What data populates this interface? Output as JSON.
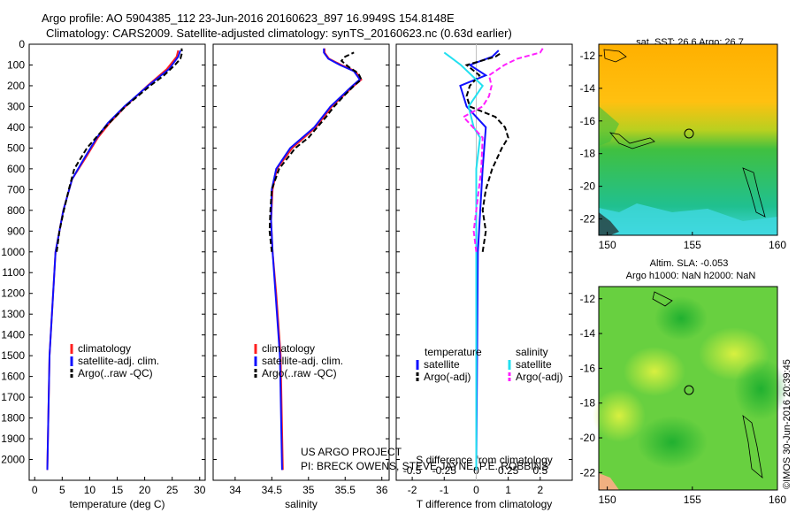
{
  "header": {
    "line1": "Argo profile: AO 5904385_112 23-Jun-2016 20160623_897 16.9949S 154.8148E",
    "line2": "Climatology: CARS2009. Satellite-adjusted climatology: synTS_20160623.nc (0.63d earlier)"
  },
  "colors": {
    "clim": "#ff2020",
    "sat": "#1010ff",
    "argo": "#000000",
    "sal_sat": "#22e0f0",
    "sal_argo": "#ff20ff"
  },
  "chart_data": [
    {
      "type": "line",
      "panel": "temperature",
      "xlabel": "temperature (deg C)",
      "xlim": [
        -1,
        31
      ],
      "xticks": [
        "0",
        "5",
        "10",
        "15",
        "20",
        "25",
        "30"
      ],
      "ylim": [
        2100,
        0
      ],
      "yticks": [
        "0",
        "100",
        "200",
        "300",
        "400",
        "500",
        "600",
        "700",
        "800",
        "900",
        "1000",
        "1100",
        "1200",
        "1300",
        "1400",
        "1500",
        "1600",
        "1700",
        "1800",
        "1900",
        "2000"
      ],
      "legend": [
        "climatology",
        "satellite-adj. clim.",
        "Argo(..raw -QC)"
      ],
      "series": [
        {
          "name": "climatology",
          "y": [
            2050,
            1500,
            1000,
            800,
            650,
            550,
            450,
            380,
            300,
            200,
            120,
            60,
            30
          ],
          "x": [
            2.3,
            2.7,
            3.8,
            5.2,
            6.8,
            9.2,
            11.5,
            13.6,
            16.5,
            20.5,
            24.0,
            25.8,
            26.1
          ]
        },
        {
          "name": "satellite-adj. clim.",
          "y": [
            2050,
            1500,
            1000,
            800,
            650,
            550,
            450,
            380,
            300,
            200,
            120,
            60,
            30
          ],
          "x": [
            2.3,
            2.7,
            3.8,
            5.2,
            6.8,
            9.0,
            11.3,
            13.3,
            16.3,
            20.6,
            24.4,
            26.1,
            26.5
          ]
        },
        {
          "name": "Argo(..raw -QC)",
          "y": [
            1000,
            900,
            800,
            700,
            600,
            500,
            400,
            300,
            200,
            150,
            100,
            70,
            40,
            20
          ],
          "x": [
            4.0,
            4.5,
            5.3,
            6.2,
            7.2,
            9.5,
            12.8,
            16.5,
            21.0,
            23.5,
            25.5,
            26.5,
            26.8,
            26.7
          ]
        }
      ]
    },
    {
      "type": "line",
      "panel": "salinity",
      "xlabel": "salinity",
      "xlim": [
        33.7,
        36.1
      ],
      "xticks": [
        "34",
        "34.5",
        "35",
        "35.5",
        "36"
      ],
      "ylim": [
        2100,
        0
      ],
      "legend": [
        "climatology",
        "satellite-adj. clim.",
        "Argo(..raw -QC)"
      ],
      "series": [
        {
          "name": "climatology",
          "y": [
            2050,
            1500,
            1200,
            1000,
            850,
            700,
            600,
            500,
            400,
            300,
            250,
            200,
            170,
            130,
            100,
            70,
            40,
            20
          ],
          "x": [
            34.65,
            34.62,
            34.56,
            34.51,
            34.49,
            34.51,
            34.57,
            34.78,
            35.1,
            35.32,
            35.47,
            35.62,
            35.72,
            35.64,
            35.45,
            35.28,
            35.22,
            35.22
          ]
        },
        {
          "name": "satellite-adj. clim.",
          "y": [
            2050,
            1500,
            1200,
            1000,
            850,
            700,
            600,
            500,
            400,
            300,
            250,
            200,
            170,
            130,
            100,
            70,
            40,
            20
          ],
          "x": [
            34.64,
            34.61,
            34.55,
            34.51,
            34.49,
            34.5,
            34.56,
            34.75,
            35.08,
            35.3,
            35.45,
            35.6,
            35.7,
            35.62,
            35.43,
            35.27,
            35.21,
            35.21
          ]
        },
        {
          "name": "Argo(..raw -QC)",
          "y": [
            1000,
            900,
            800,
            700,
            600,
            500,
            450,
            400,
            350,
            300,
            250,
            200,
            170,
            140,
            110,
            80,
            60,
            40
          ],
          "x": [
            34.5,
            34.47,
            34.48,
            34.5,
            34.6,
            34.82,
            35.0,
            35.12,
            35.24,
            35.35,
            35.48,
            35.62,
            35.72,
            35.68,
            35.55,
            35.45,
            35.5,
            35.62
          ]
        }
      ]
    },
    {
      "type": "line",
      "panel": "difference",
      "xlabel": "T difference from climatology",
      "xlabel_top": "S difference from climatology",
      "xlim": [
        -2.5,
        3
      ],
      "xticks": [
        "-2",
        "-1",
        "0",
        "1",
        "2"
      ],
      "xticks_top": [
        "-0.5",
        "-0.25",
        "0",
        "0.25",
        "0.5"
      ],
      "ylim": [
        2100,
        0
      ],
      "legend_title_left": "temperature",
      "legend_title_right": "salinity",
      "legend": [
        "satellite",
        "Argo(-adj)",
        "satellite",
        "Argo(-adj)"
      ],
      "series": [
        {
          "name": "temperature satellite",
          "y": [
            2050,
            1000,
            600,
            400,
            300,
            200,
            150,
            100,
            60,
            30
          ],
          "x": [
            0,
            0.05,
            0.2,
            0.3,
            -0.3,
            -0.5,
            0.3,
            -0.2,
            0.5,
            0.7
          ]
        },
        {
          "name": "temperature Argo(-adj)",
          "y": [
            1000,
            900,
            800,
            700,
            600,
            500,
            450,
            400,
            350,
            300,
            250,
            200,
            150,
            100,
            60,
            40
          ],
          "x": [
            0.2,
            0.3,
            0.2,
            0.3,
            0.5,
            0.8,
            1.0,
            0.9,
            0.6,
            -0.2,
            -0.3,
            -0.2,
            0.1,
            -0.3,
            0.6,
            0.8
          ]
        },
        {
          "name": "salinity satellite",
          "y": [
            2050,
            1000,
            600,
            450,
            400,
            300,
            200,
            100,
            40
          ],
          "x": [
            0,
            0,
            0,
            0.03,
            -0.02,
            -0.06,
            0.05,
            -0.12,
            -0.25
          ]
        },
        {
          "name": "salinity Argo(-adj)",
          "y": [
            1000,
            900,
            800,
            600,
            450,
            350,
            300,
            250,
            200,
            150,
            100,
            70,
            40,
            20
          ],
          "x": [
            0,
            -0.02,
            0,
            0.04,
            0.05,
            -0.1,
            0.05,
            0.1,
            0.12,
            0.1,
            0.22,
            0.32,
            0.5,
            0.52
          ]
        }
      ]
    }
  ],
  "maps": [
    {
      "title": "sat. SST: 26.6 Argo: 26.7",
      "lat_ticks": [
        "-12",
        "-14",
        "-16",
        "-18",
        "-20",
        "-22"
      ],
      "lon_ticks": [
        "150",
        "155",
        "160"
      ]
    },
    {
      "title_line1": "Altim. SLA: -0.053",
      "title_line2": "Argo h1000: NaN h2000: NaN",
      "lat_ticks": [
        "-12",
        "-14",
        "-16",
        "-18",
        "-20",
        "-22"
      ],
      "lon_ticks": [
        "150",
        "155",
        "160"
      ]
    }
  ],
  "credits": {
    "line1": "US ARGO PROJECT",
    "line2": "PI: BRECK OWENS, STEVE JAYNE, P.E. ROBBINS",
    "stamp": "©IMOS 30-Jun-2016 20:39:45"
  }
}
